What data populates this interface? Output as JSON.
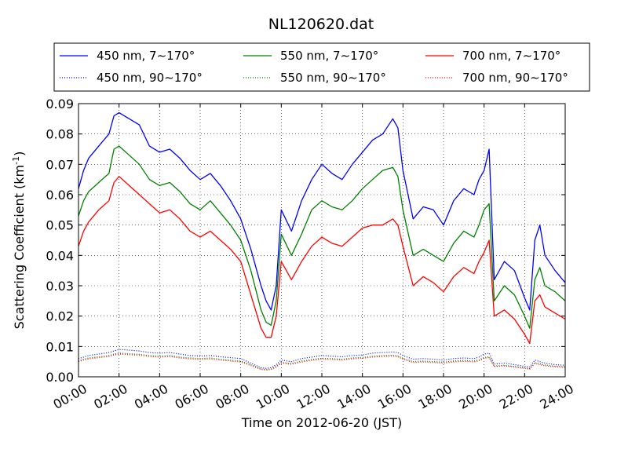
{
  "chart_data": {
    "type": "line",
    "title": "NL120620.dat",
    "xlabel": "Time on 2012-06-20 (JST)",
    "ylabel": "Scattering Coefficient (km",
    "ylabel_exponent": "-1",
    "ylabel_close": ")",
    "xlim": [
      0,
      24
    ],
    "ylim": [
      0,
      0.09
    ],
    "grid": true,
    "legend_position": "top",
    "x_ticks": [
      0,
      2,
      4,
      6,
      8,
      10,
      12,
      14,
      16,
      18,
      20,
      22,
      24
    ],
    "x_tick_labels": [
      "00:00",
      "02:00",
      "04:00",
      "06:00",
      "08:00",
      "10:00",
      "12:00",
      "14:00",
      "16:00",
      "18:00",
      "20:00",
      "22:00",
      "24:00"
    ],
    "y_ticks": [
      0,
      0.01,
      0.02,
      0.03,
      0.04,
      0.05,
      0.06,
      0.07,
      0.08,
      0.09
    ],
    "y_tick_labels": [
      "0.00",
      "0.01",
      "0.02",
      "0.03",
      "0.04",
      "0.05",
      "0.06",
      "0.07",
      "0.08",
      "0.09"
    ],
    "x": [
      0,
      0.25,
      0.5,
      1,
      1.5,
      1.75,
      2,
      2.5,
      3,
      3.5,
      4,
      4.5,
      5,
      5.5,
      6,
      6.5,
      7,
      7.5,
      8,
      8.5,
      9,
      9.25,
      9.5,
      9.75,
      10,
      10.5,
      11,
      11.5,
      12,
      12.5,
      13,
      13.5,
      14,
      14.5,
      15,
      15.5,
      15.75,
      16,
      16.5,
      17,
      17.5,
      18,
      18.5,
      19,
      19.5,
      19.75,
      20,
      20.25,
      20.5,
      21,
      21.5,
      22,
      22.25,
      22.5,
      22.75,
      23,
      23.5,
      24
    ],
    "series": [
      {
        "name": "450 nm, 7∼170°",
        "color": "#0000ff",
        "style": "solid",
        "values": [
          0.062,
          0.068,
          0.072,
          0.076,
          0.08,
          0.086,
          0.087,
          0.085,
          0.083,
          0.076,
          0.074,
          0.075,
          0.072,
          0.068,
          0.065,
          0.067,
          0.063,
          0.058,
          0.052,
          0.042,
          0.03,
          0.025,
          0.022,
          0.03,
          0.055,
          0.048,
          0.058,
          0.065,
          0.07,
          0.067,
          0.065,
          0.07,
          0.074,
          0.078,
          0.08,
          0.085,
          0.082,
          0.068,
          0.052,
          0.056,
          0.055,
          0.05,
          0.058,
          0.062,
          0.06,
          0.065,
          0.068,
          0.075,
          0.032,
          0.038,
          0.035,
          0.026,
          0.022,
          0.045,
          0.05,
          0.04,
          0.035,
          0.031
        ]
      },
      {
        "name": "550 nm, 7∼170°",
        "color": "#008000",
        "style": "solid",
        "values": [
          0.053,
          0.058,
          0.061,
          0.064,
          0.067,
          0.075,
          0.076,
          0.073,
          0.07,
          0.065,
          0.063,
          0.064,
          0.061,
          0.057,
          0.055,
          0.058,
          0.054,
          0.05,
          0.045,
          0.035,
          0.022,
          0.018,
          0.017,
          0.025,
          0.047,
          0.04,
          0.047,
          0.055,
          0.058,
          0.056,
          0.055,
          0.058,
          0.062,
          0.065,
          0.068,
          0.069,
          0.066,
          0.055,
          0.04,
          0.042,
          0.04,
          0.038,
          0.044,
          0.048,
          0.046,
          0.05,
          0.055,
          0.057,
          0.025,
          0.03,
          0.027,
          0.02,
          0.016,
          0.032,
          0.036,
          0.03,
          0.028,
          0.025
        ]
      },
      {
        "name": "700 nm, 7∼170°",
        "color": "#ff0000",
        "style": "solid",
        "values": [
          0.043,
          0.048,
          0.051,
          0.055,
          0.058,
          0.064,
          0.066,
          0.063,
          0.06,
          0.057,
          0.054,
          0.055,
          0.052,
          0.048,
          0.046,
          0.048,
          0.045,
          0.042,
          0.038,
          0.027,
          0.016,
          0.013,
          0.013,
          0.02,
          0.038,
          0.032,
          0.038,
          0.043,
          0.046,
          0.044,
          0.043,
          0.046,
          0.049,
          0.05,
          0.05,
          0.052,
          0.05,
          0.043,
          0.03,
          0.033,
          0.031,
          0.028,
          0.033,
          0.036,
          0.034,
          0.038,
          0.041,
          0.045,
          0.02,
          0.022,
          0.019,
          0.014,
          0.011,
          0.025,
          0.027,
          0.023,
          0.021,
          0.019
        ]
      },
      {
        "name": "450 nm, 90∼170°",
        "color": "#0000ff",
        "style": "dotted",
        "values": [
          0.006,
          0.0065,
          0.007,
          0.0075,
          0.008,
          0.0085,
          0.009,
          0.0088,
          0.0085,
          0.008,
          0.0078,
          0.008,
          0.0075,
          0.007,
          0.0068,
          0.007,
          0.0066,
          0.0063,
          0.006,
          0.0045,
          0.003,
          0.0028,
          0.003,
          0.004,
          0.0055,
          0.005,
          0.006,
          0.0065,
          0.007,
          0.0068,
          0.0066,
          0.007,
          0.0072,
          0.0078,
          0.008,
          0.0082,
          0.008,
          0.007,
          0.0058,
          0.006,
          0.0058,
          0.0055,
          0.006,
          0.0062,
          0.006,
          0.0065,
          0.0075,
          0.0078,
          0.0042,
          0.0045,
          0.004,
          0.0035,
          0.0032,
          0.0055,
          0.005,
          0.0045,
          0.004,
          0.0038
        ]
      },
      {
        "name": "550 nm, 90∼170°",
        "color": "#008000",
        "style": "dotted",
        "values": [
          0.0052,
          0.0058,
          0.0062,
          0.0066,
          0.007,
          0.0075,
          0.0078,
          0.0076,
          0.0074,
          0.007,
          0.0068,
          0.007,
          0.0065,
          0.0062,
          0.006,
          0.0062,
          0.0058,
          0.0055,
          0.0052,
          0.004,
          0.0026,
          0.0024,
          0.0026,
          0.0035,
          0.0048,
          0.0044,
          0.0052,
          0.0057,
          0.0061,
          0.006,
          0.0058,
          0.0062,
          0.0064,
          0.0068,
          0.007,
          0.0071,
          0.0069,
          0.0061,
          0.005,
          0.0052,
          0.005,
          0.0048,
          0.0052,
          0.0054,
          0.0052,
          0.0056,
          0.0064,
          0.0066,
          0.0036,
          0.0038,
          0.0034,
          0.003,
          0.0027,
          0.0047,
          0.0043,
          0.0039,
          0.0035,
          0.0033
        ]
      },
      {
        "name": "700 nm, 90∼170°",
        "color": "#ff0000",
        "style": "dotted",
        "values": [
          0.005,
          0.0055,
          0.0059,
          0.0063,
          0.0067,
          0.0072,
          0.0075,
          0.0073,
          0.0071,
          0.0067,
          0.0065,
          0.0067,
          0.0062,
          0.0059,
          0.0057,
          0.0059,
          0.0055,
          0.0052,
          0.0049,
          0.0037,
          0.0024,
          0.0022,
          0.0024,
          0.0032,
          0.0045,
          0.0041,
          0.0049,
          0.0054,
          0.0058,
          0.0057,
          0.0055,
          0.0059,
          0.0061,
          0.0065,
          0.0067,
          0.0068,
          0.0066,
          0.0058,
          0.0047,
          0.0049,
          0.0047,
          0.0045,
          0.0049,
          0.0051,
          0.0049,
          0.0053,
          0.0061,
          0.0063,
          0.0034,
          0.0036,
          0.0032,
          0.0028,
          0.0025,
          0.0044,
          0.004,
          0.0036,
          0.0033,
          0.0031
        ]
      }
    ]
  }
}
